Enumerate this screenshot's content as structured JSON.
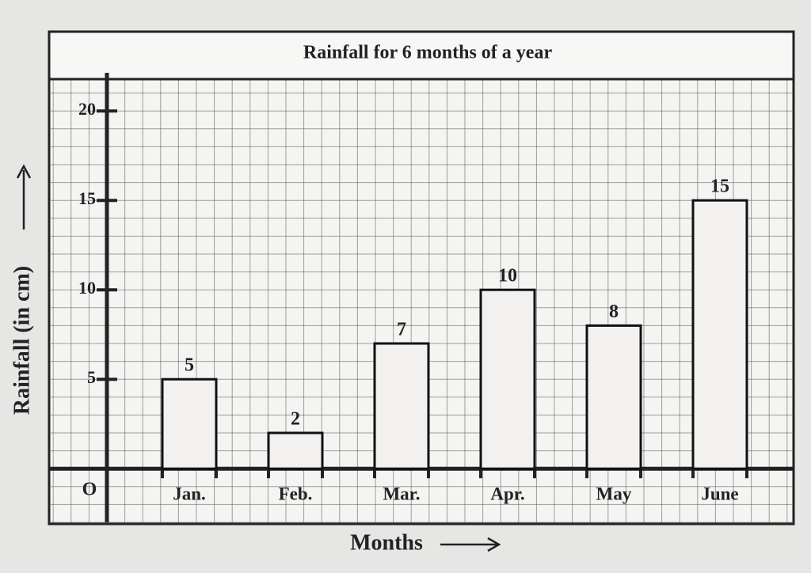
{
  "chart_data": {
    "type": "bar",
    "title": "Rainfall for 6 months of a year",
    "y_label": "Rainfall (in cm)",
    "x_label": "Months",
    "categories": [
      "Jan.",
      "Feb.",
      "Mar.",
      "Apr.",
      "May",
      "June"
    ],
    "values": [
      5,
      2,
      7,
      10,
      8,
      15
    ],
    "color": "#f3f1f0",
    "ylim": [
      -3,
      22
    ],
    "yticks": [
      {
        "value": 0,
        "label": "O"
      },
      5,
      10,
      15,
      20
    ],
    "grid": true
  }
}
